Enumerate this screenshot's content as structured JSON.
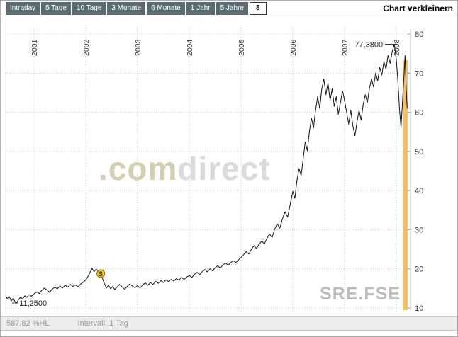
{
  "header": {
    "tabs": [
      {
        "label": "Intraday",
        "selected": false
      },
      {
        "label": "5 Tage",
        "selected": false
      },
      {
        "label": "10 Tage",
        "selected": false
      },
      {
        "label": "3 Monate",
        "selected": false
      },
      {
        "label": "6 Monate",
        "selected": false
      },
      {
        "label": "1 Jahr",
        "selected": false
      },
      {
        "label": "5 Jahre",
        "selected": false
      },
      {
        "label": "8",
        "selected": true
      }
    ],
    "shrink_link": "Chart verkleinern"
  },
  "watermark": {
    "part1": ".com",
    "part2": "direct"
  },
  "footer": {
    "hl": "587,82 %HL",
    "interval": "Intervall: 1 Tag"
  },
  "colors": {
    "tab_bg": "#5a6c72",
    "line": "#111111",
    "accent_bar": "#f3bf68",
    "marker_fill": "#f6c62d",
    "grid": "#c9c9c9"
  },
  "chart_data": {
    "type": "line",
    "symbol": "SRE.FSE",
    "x_ticks": [
      2001,
      2002,
      2003,
      2004,
      2005,
      2006,
      2007,
      2008
    ],
    "x_tick_labels": [
      "2001",
      "2002",
      "2003",
      "2004",
      "2005",
      "2006",
      "2007",
      "2008"
    ],
    "y_ticks": [
      10,
      20,
      30,
      40,
      50,
      60,
      70,
      80
    ],
    "x_range": [
      2000.45,
      2008.25
    ],
    "y_range": [
      10,
      80
    ],
    "grid": "dotted",
    "legend": "none",
    "annotations": {
      "high": {
        "label": "77,3800",
        "x": 2007.96,
        "y": 77.38
      },
      "low": {
        "label": "11,2500",
        "x": 2000.66,
        "y": 11.25
      },
      "dollar_marker": {
        "label": "$",
        "x": 2002.29,
        "y": 18.8
      }
    },
    "current_bar": {
      "x": 2008.17
    },
    "series": [
      {
        "name": "SRE.FSE",
        "points": [
          [
            2000.45,
            13.2
          ],
          [
            2000.48,
            12.4
          ],
          [
            2000.52,
            12.9
          ],
          [
            2000.56,
            11.8
          ],
          [
            2000.6,
            12.5
          ],
          [
            2000.63,
            11.6
          ],
          [
            2000.66,
            11.25
          ],
          [
            2000.7,
            12.1
          ],
          [
            2000.74,
            12.8
          ],
          [
            2000.78,
            12.3
          ],
          [
            2000.82,
            13.1
          ],
          [
            2000.86,
            12.7
          ],
          [
            2000.9,
            13.4
          ],
          [
            2000.95,
            13.0
          ],
          [
            2001.0,
            13.6
          ],
          [
            2001.05,
            14.1
          ],
          [
            2001.1,
            13.7
          ],
          [
            2001.15,
            14.5
          ],
          [
            2001.2,
            15.1
          ],
          [
            2001.25,
            14.6
          ],
          [
            2001.3,
            14.0
          ],
          [
            2001.35,
            14.8
          ],
          [
            2001.4,
            15.3
          ],
          [
            2001.45,
            14.9
          ],
          [
            2001.5,
            15.6
          ],
          [
            2001.55,
            15.1
          ],
          [
            2001.6,
            15.8
          ],
          [
            2001.65,
            15.3
          ],
          [
            2001.7,
            16.0
          ],
          [
            2001.75,
            15.5
          ],
          [
            2001.8,
            15.9
          ],
          [
            2001.85,
            15.4
          ],
          [
            2001.9,
            16.1
          ],
          [
            2001.95,
            16.6
          ],
          [
            2002.0,
            17.2
          ],
          [
            2002.04,
            18.0
          ],
          [
            2002.08,
            19.0
          ],
          [
            2002.12,
            20.1
          ],
          [
            2002.16,
            19.3
          ],
          [
            2002.2,
            19.9
          ],
          [
            2002.24,
            19.4
          ],
          [
            2002.28,
            18.7
          ],
          [
            2002.32,
            17.6
          ],
          [
            2002.36,
            16.2
          ],
          [
            2002.4,
            15.1
          ],
          [
            2002.44,
            15.8
          ],
          [
            2002.48,
            14.9
          ],
          [
            2002.52,
            15.5
          ],
          [
            2002.56,
            14.7
          ],
          [
            2002.6,
            15.3
          ],
          [
            2002.65,
            16.0
          ],
          [
            2002.7,
            15.4
          ],
          [
            2002.75,
            14.8
          ],
          [
            2002.8,
            15.5
          ],
          [
            2002.85,
            16.1
          ],
          [
            2002.9,
            15.6
          ],
          [
            2002.95,
            15.2
          ],
          [
            2003.0,
            15.7
          ],
          [
            2003.05,
            15.1
          ],
          [
            2003.1,
            15.9
          ],
          [
            2003.15,
            16.4
          ],
          [
            2003.2,
            15.8
          ],
          [
            2003.25,
            16.5
          ],
          [
            2003.3,
            16.0
          ],
          [
            2003.35,
            16.8
          ],
          [
            2003.4,
            16.3
          ],
          [
            2003.45,
            17.0
          ],
          [
            2003.5,
            16.5
          ],
          [
            2003.55,
            17.2
          ],
          [
            2003.6,
            16.7
          ],
          [
            2003.65,
            17.3
          ],
          [
            2003.7,
            16.9
          ],
          [
            2003.75,
            17.5
          ],
          [
            2003.8,
            17.1
          ],
          [
            2003.85,
            17.8
          ],
          [
            2003.9,
            17.3
          ],
          [
            2003.95,
            17.9
          ],
          [
            2004.0,
            18.3
          ],
          [
            2004.05,
            17.8
          ],
          [
            2004.1,
            18.6
          ],
          [
            2004.15,
            19.1
          ],
          [
            2004.2,
            18.5
          ],
          [
            2004.25,
            19.3
          ],
          [
            2004.3,
            19.8
          ],
          [
            2004.35,
            19.2
          ],
          [
            2004.4,
            20.0
          ],
          [
            2004.45,
            19.5
          ],
          [
            2004.5,
            20.3
          ],
          [
            2004.55,
            20.8
          ],
          [
            2004.6,
            20.2
          ],
          [
            2004.65,
            21.0
          ],
          [
            2004.7,
            21.5
          ],
          [
            2004.75,
            20.9
          ],
          [
            2004.8,
            21.6
          ],
          [
            2004.85,
            22.1
          ],
          [
            2004.9,
            21.6
          ],
          [
            2004.95,
            22.3
          ],
          [
            2005.0,
            22.9
          ],
          [
            2005.05,
            23.6
          ],
          [
            2005.1,
            24.4
          ],
          [
            2005.15,
            23.8
          ],
          [
            2005.2,
            25.0
          ],
          [
            2005.25,
            25.9
          ],
          [
            2005.3,
            25.2
          ],
          [
            2005.35,
            26.3
          ],
          [
            2005.4,
            27.1
          ],
          [
            2005.45,
            26.4
          ],
          [
            2005.5,
            27.8
          ],
          [
            2005.55,
            28.9
          ],
          [
            2005.6,
            28.0
          ],
          [
            2005.65,
            30.2
          ],
          [
            2005.7,
            31.5
          ],
          [
            2005.75,
            30.4
          ],
          [
            2005.8,
            32.8
          ],
          [
            2005.85,
            34.6
          ],
          [
            2005.9,
            33.2
          ],
          [
            2005.95,
            36.5
          ],
          [
            2006.0,
            39.8
          ],
          [
            2006.04,
            38.0
          ],
          [
            2006.08,
            42.5
          ],
          [
            2006.12,
            45.6
          ],
          [
            2006.16,
            43.8
          ],
          [
            2006.2,
            48.0
          ],
          [
            2006.24,
            52.5
          ],
          [
            2006.28,
            50.2
          ],
          [
            2006.32,
            55.0
          ],
          [
            2006.36,
            58.5
          ],
          [
            2006.4,
            56.0
          ],
          [
            2006.44,
            60.5
          ],
          [
            2006.48,
            64.0
          ],
          [
            2006.52,
            61.0
          ],
          [
            2006.56,
            66.0
          ],
          [
            2006.6,
            68.5
          ],
          [
            2006.64,
            64.5
          ],
          [
            2006.68,
            67.5
          ],
          [
            2006.72,
            63.0
          ],
          [
            2006.76,
            66.0
          ],
          [
            2006.8,
            61.5
          ],
          [
            2006.84,
            64.0
          ],
          [
            2006.88,
            59.5
          ],
          [
            2006.92,
            62.5
          ],
          [
            2006.96,
            65.5
          ],
          [
            2007.0,
            63.0
          ],
          [
            2007.04,
            60.0
          ],
          [
            2007.08,
            57.0
          ],
          [
            2007.12,
            60.5
          ],
          [
            2007.16,
            56.5
          ],
          [
            2007.2,
            54.0
          ],
          [
            2007.24,
            57.5
          ],
          [
            2007.28,
            60.5
          ],
          [
            2007.32,
            58.0
          ],
          [
            2007.36,
            62.0
          ],
          [
            2007.4,
            64.5
          ],
          [
            2007.44,
            62.5
          ],
          [
            2007.48,
            66.0
          ],
          [
            2007.52,
            68.5
          ],
          [
            2007.56,
            66.5
          ],
          [
            2007.6,
            70.0
          ],
          [
            2007.64,
            68.0
          ],
          [
            2007.68,
            71.5
          ],
          [
            2007.72,
            69.5
          ],
          [
            2007.76,
            73.0
          ],
          [
            2007.8,
            71.0
          ],
          [
            2007.84,
            74.5
          ],
          [
            2007.88,
            72.5
          ],
          [
            2007.92,
            75.5
          ],
          [
            2007.96,
            77.38
          ],
          [
            2008.0,
            73.5
          ],
          [
            2008.03,
            68.0
          ],
          [
            2008.06,
            61.0
          ],
          [
            2008.09,
            56.0
          ],
          [
            2008.12,
            63.0
          ],
          [
            2008.15,
            70.0
          ],
          [
            2008.17,
            74.5
          ],
          [
            2008.19,
            66.0
          ],
          [
            2008.21,
            61.0
          ]
        ]
      }
    ]
  }
}
